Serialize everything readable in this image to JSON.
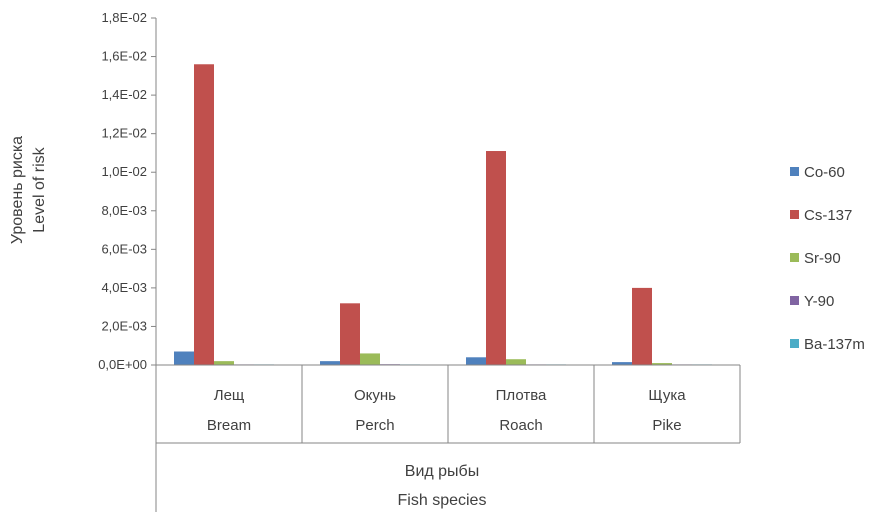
{
  "chart_data": {
    "type": "bar",
    "title": "",
    "categories": [
      {
        "line1": "Лещ",
        "line2": "Bream"
      },
      {
        "line1": "Окунь",
        "line2": "Perch"
      },
      {
        "line1": "Плотва",
        "line2": "Roach"
      },
      {
        "line1": "Щука",
        "line2": "Pike"
      }
    ],
    "series": [
      {
        "name": "Co-60",
        "color": "#4f81bd",
        "values": [
          0.0007,
          0.0002,
          0.0004,
          0.00015
        ]
      },
      {
        "name": "Cs-137",
        "color": "#c0504d",
        "values": [
          0.0156,
          0.0032,
          0.0111,
          0.004
        ]
      },
      {
        "name": "Sr-90",
        "color": "#9bbb59",
        "values": [
          0.0002,
          0.0006,
          0.0003,
          0.0001
        ]
      },
      {
        "name": "Y-90",
        "color": "#8064a2",
        "values": [
          2e-05,
          4e-05,
          2e-05,
          1e-05
        ]
      },
      {
        "name": "Ba-137m",
        "color": "#4bacc6",
        "values": [
          1e-05,
          1e-05,
          1e-05,
          1e-05
        ]
      }
    ],
    "ylabel": {
      "line1": "Уровень риска",
      "line2": "Level of risk"
    },
    "xlabel": {
      "line1": "Вид рыбы",
      "line2": "Fish species"
    },
    "ylim": [
      0,
      0.018
    ],
    "yticks": [
      "0,0E+00",
      "2,0E-03",
      "4,0E-03",
      "6,0E-03",
      "8,0E-03",
      "1,0E-02",
      "1,2E-02",
      "1,4E-02",
      "1,6E-02",
      "1,8E-02"
    ],
    "grid": false,
    "legend_position": "right"
  }
}
